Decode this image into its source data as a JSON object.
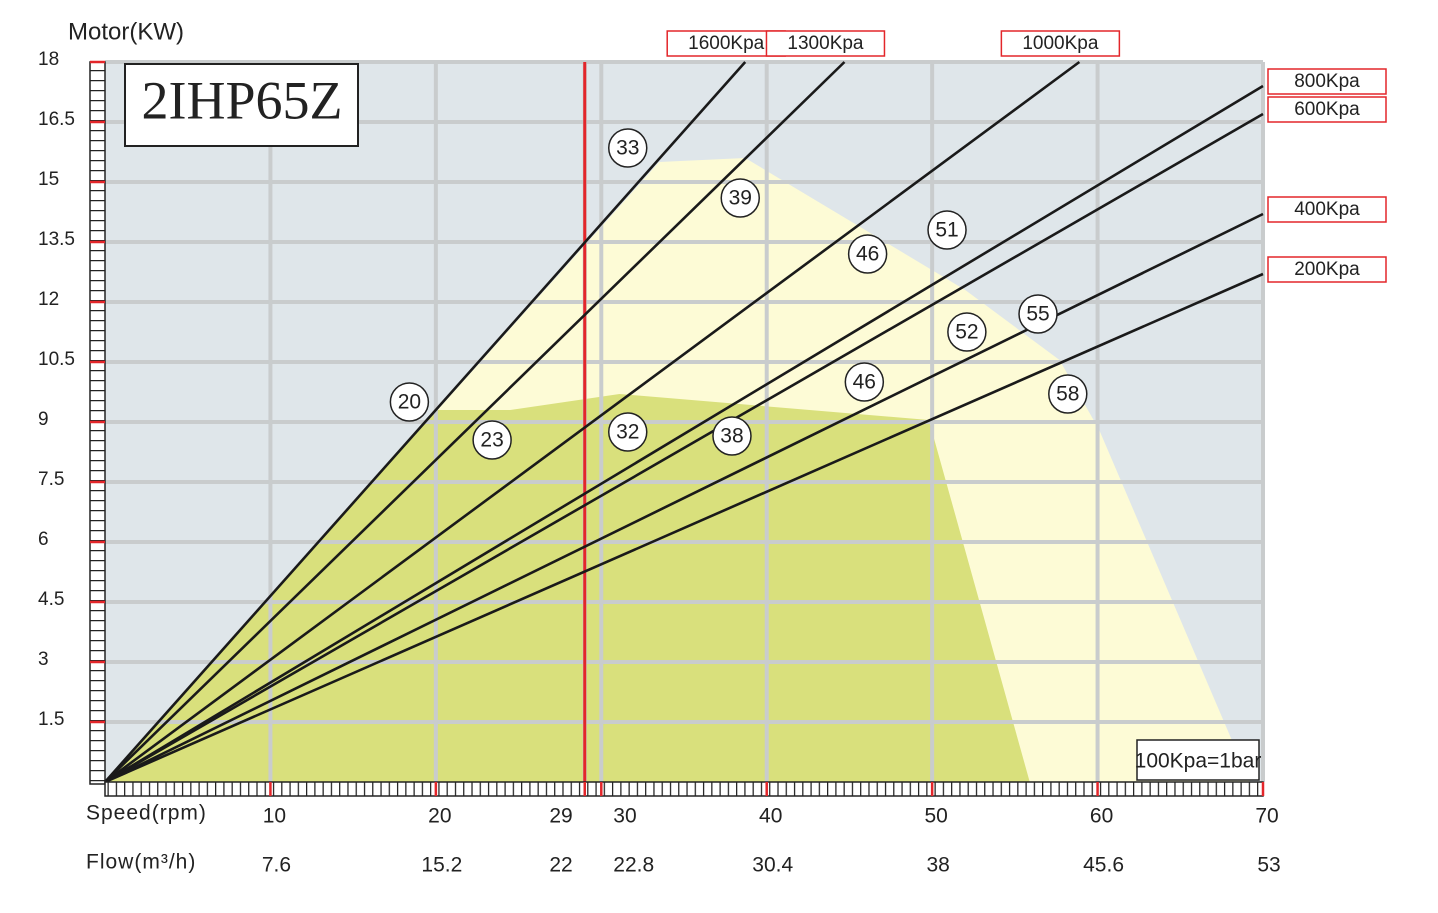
{
  "chart_data": {
    "type": "line",
    "title": "2IHP65Z",
    "ylabel": "Motor(KW)",
    "xlabel": "Speed(rpm)",
    "x2label": "Flow(m³/h)",
    "note": "100Kpa=1bar",
    "xlim": [
      0,
      70
    ],
    "ylim": [
      0,
      18
    ],
    "xticks": [
      10,
      20,
      29,
      30,
      40,
      50,
      60,
      70
    ],
    "x2ticks": [
      7.6,
      15.2,
      22,
      22.8,
      30.4,
      38,
      45.6,
      53
    ],
    "yticks": [
      1.5,
      3,
      4.5,
      6,
      7.5,
      9,
      10.5,
      12,
      13.5,
      15,
      16.5,
      18
    ],
    "grid": true,
    "marker_line": {
      "x": 29,
      "color": "#e3262a"
    },
    "series": [
      {
        "name": "1600Kpa",
        "color": "#1a1a1a",
        "x": [
          0,
          38.7
        ],
        "values": [
          0,
          18
        ]
      },
      {
        "name": "1300Kpa",
        "color": "#1a1a1a",
        "x": [
          0,
          44.7
        ],
        "values": [
          0,
          18
        ]
      },
      {
        "name": "1000Kpa",
        "color": "#1a1a1a",
        "x": [
          0,
          58.9
        ],
        "values": [
          0,
          18
        ]
      },
      {
        "name": "800Kpa",
        "color": "#1a1a1a",
        "x": [
          0,
          70
        ],
        "values": [
          0,
          17.4
        ]
      },
      {
        "name": "600Kpa",
        "color": "#1a1a1a",
        "x": [
          0,
          70
        ],
        "values": [
          0,
          16.7
        ]
      },
      {
        "name": "400Kpa",
        "color": "#1a1a1a",
        "x": [
          0,
          70
        ],
        "values": [
          0,
          14.2
        ]
      },
      {
        "name": "200Kpa",
        "color": "#1a1a1a",
        "x": [
          0,
          70
        ],
        "values": [
          0,
          12.7
        ]
      }
    ],
    "regions": [
      {
        "color": "#fdfbd6",
        "x": [
          0,
          33.5,
          38.7,
          52,
          57.7,
          60.1,
          69.2
        ],
        "y": [
          0,
          15.5,
          15.6,
          12.3,
          10.55,
          8.8,
          0
        ]
      },
      {
        "color": "#d9e07c",
        "x": [
          0,
          19.9,
          24.5,
          31.1,
          49.8,
          55.9
        ],
        "y": [
          0,
          9.3,
          9.3,
          9.7,
          9.05,
          0
        ]
      }
    ],
    "annotations": [
      {
        "text": "33",
        "x": 31.6,
        "y": 15.85
      },
      {
        "text": "39",
        "x": 38.4,
        "y": 14.6
      },
      {
        "text": "46",
        "x": 46.1,
        "y": 13.2
      },
      {
        "text": "51",
        "x": 50.9,
        "y": 13.8
      },
      {
        "text": "20",
        "x": 18.4,
        "y": 9.5
      },
      {
        "text": "23",
        "x": 23.4,
        "y": 8.55
      },
      {
        "text": "32",
        "x": 31.6,
        "y": 8.75
      },
      {
        "text": "38",
        "x": 37.9,
        "y": 8.65
      },
      {
        "text": "46",
        "x": 45.9,
        "y": 10.0
      },
      {
        "text": "52",
        "x": 52.1,
        "y": 11.25
      },
      {
        "text": "55",
        "x": 56.4,
        "y": 11.7
      },
      {
        "text": "58",
        "x": 58.2,
        "y": 9.7
      }
    ]
  }
}
